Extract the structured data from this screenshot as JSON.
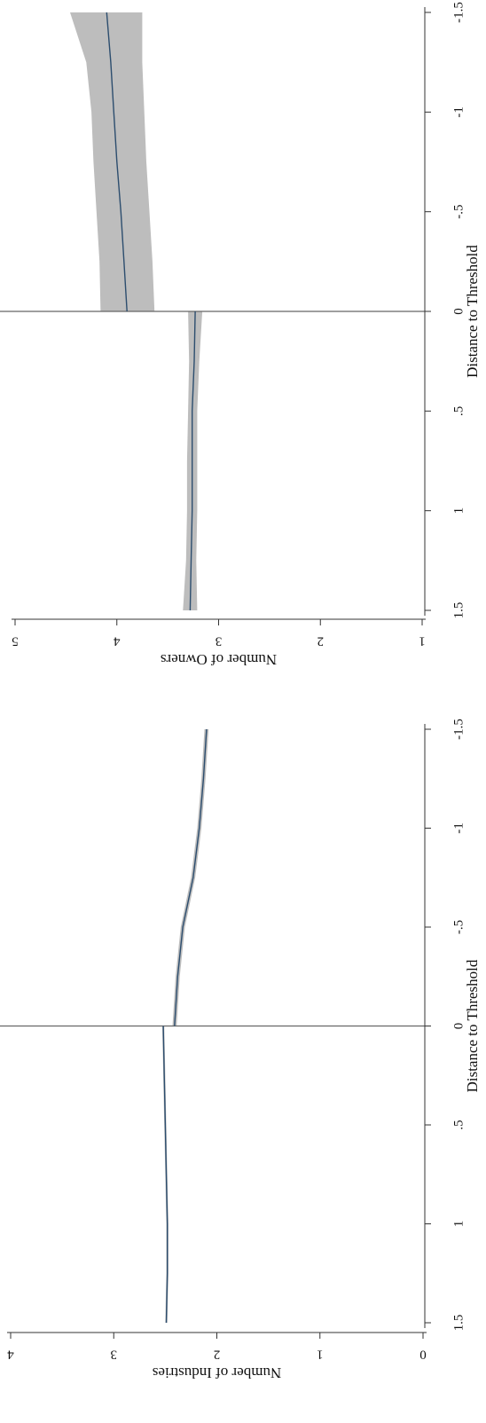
{
  "colors": {
    "ci_band": "#bdbdbd",
    "fit_line": "#2c4d6e",
    "axis": "#333333",
    "threshold_line": "#666666"
  },
  "chart_data": [
    {
      "type": "line",
      "title": "",
      "xlabel": "Distance to Threshold",
      "ylabel": "Number of Owners",
      "xlim": [
        -1.5,
        1.5
      ],
      "ylim": [
        1,
        5
      ],
      "xticks": [
        "-1.5",
        "-1",
        "-.5",
        "0",
        ".5",
        "1",
        "1.5"
      ],
      "yticks": [
        "1",
        "2",
        "3",
        "4",
        "5"
      ],
      "threshold": 0,
      "series": [
        {
          "segment": "left",
          "x": [
            -1.5,
            -1.25,
            -1.0,
            -0.75,
            -0.5,
            -0.25,
            0.0
          ],
          "y": [
            4.1,
            4.06,
            4.03,
            4.0,
            3.96,
            3.93,
            3.9
          ],
          "lower": [
            3.75,
            3.75,
            3.73,
            3.71,
            3.68,
            3.65,
            3.63
          ],
          "upper": [
            4.46,
            4.3,
            4.25,
            4.23,
            4.2,
            4.17,
            4.16
          ]
        },
        {
          "segment": "right",
          "x": [
            0.0,
            0.25,
            0.5,
            0.75,
            1.0,
            1.25,
            1.5
          ],
          "y": [
            3.23,
            3.24,
            3.26,
            3.26,
            3.26,
            3.27,
            3.28
          ],
          "lower": [
            3.16,
            3.19,
            3.21,
            3.21,
            3.21,
            3.22,
            3.21
          ],
          "upper": [
            3.3,
            3.29,
            3.3,
            3.31,
            3.31,
            3.32,
            3.35
          ]
        }
      ]
    },
    {
      "type": "line",
      "title": "",
      "xlabel": "Distance to Threshold",
      "ylabel": "Number of Industries",
      "xlim": [
        -1.5,
        1.5
      ],
      "ylim": [
        0,
        4
      ],
      "xticks": [
        "-1.5",
        "-1",
        "-.5",
        "0",
        ".5",
        "1",
        "1.5"
      ],
      "yticks": [
        "0",
        "1",
        "2",
        "3",
        "4"
      ],
      "threshold": 0,
      "series": [
        {
          "segment": "left",
          "x": [
            -1.5,
            -1.25,
            -1.0,
            -0.75,
            -0.5,
            -0.25,
            0.0
          ],
          "y": [
            2.1,
            2.13,
            2.17,
            2.23,
            2.33,
            2.38,
            2.41
          ],
          "lower": [
            2.08,
            2.11,
            2.15,
            2.21,
            2.31,
            2.36,
            2.39
          ],
          "upper": [
            2.12,
            2.15,
            2.19,
            2.25,
            2.35,
            2.4,
            2.43
          ]
        },
        {
          "segment": "right",
          "x": [
            0.0,
            0.25,
            0.5,
            0.75,
            1.0,
            1.25,
            1.5
          ],
          "y": [
            2.52,
            2.51,
            2.5,
            2.49,
            2.48,
            2.48,
            2.49
          ],
          "lower": [
            2.51,
            2.5,
            2.49,
            2.48,
            2.47,
            2.47,
            2.48
          ],
          "upper": [
            2.53,
            2.52,
            2.51,
            2.5,
            2.49,
            2.49,
            2.5
          ]
        }
      ]
    }
  ]
}
